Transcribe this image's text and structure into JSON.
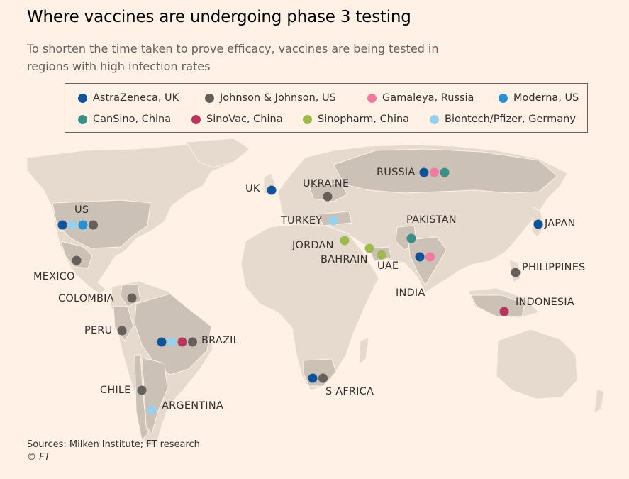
{
  "title": "Where vaccines are undergoing phase 3 testing",
  "subtitle": "To shorten the time taken to prove efficacy, vaccines are being tested in regions with high infection rates",
  "legend": [
    {
      "id": "astrazeneca",
      "label": "AstraZeneca, UK",
      "color": "#0f5499"
    },
    {
      "id": "jj",
      "label": "Johnson & Johnson, US",
      "color": "#66605c"
    },
    {
      "id": "gamaleya",
      "label": "Gamaleya, Russia",
      "color": "#f2799f"
    },
    {
      "id": "moderna",
      "label": "Moderna, US",
      "color": "#2a8fd1"
    },
    {
      "id": "cansino",
      "label": "CanSino, China",
      "color": "#3a9089"
    },
    {
      "id": "sinovac",
      "label": "SinoVac, China",
      "color": "#b8365c"
    },
    {
      "id": "sinopharm",
      "label": "Sinopharm, China",
      "color": "#9dbb4d"
    },
    {
      "id": "biontech",
      "label": "Biontech/Pfizer, Germany",
      "color": "#96d0ec"
    }
  ],
  "countries": [
    {
      "name": "US",
      "vaccines": [
        "astrazeneca",
        "biontech",
        "moderna",
        "jj"
      ]
    },
    {
      "name": "MEXICO",
      "vaccines": [
        "jj"
      ]
    },
    {
      "name": "COLOMBIA",
      "vaccines": [
        "jj"
      ]
    },
    {
      "name": "PERU",
      "vaccines": [
        "jj"
      ]
    },
    {
      "name": "BRAZIL",
      "vaccines": [
        "astrazeneca",
        "biontech",
        "sinovac",
        "jj"
      ]
    },
    {
      "name": "CHILE",
      "vaccines": [
        "jj"
      ]
    },
    {
      "name": "ARGENTINA",
      "vaccines": [
        "biontech"
      ]
    },
    {
      "name": "UK",
      "vaccines": [
        "astrazeneca"
      ]
    },
    {
      "name": "UKRAINE",
      "vaccines": [
        "jj"
      ]
    },
    {
      "name": "TURKEY",
      "vaccines": [
        "biontech"
      ]
    },
    {
      "name": "JORDAN",
      "vaccines": [
        "sinopharm"
      ]
    },
    {
      "name": "BAHRAIN",
      "vaccines": [
        "sinopharm"
      ]
    },
    {
      "name": "UAE",
      "vaccines": [
        "sinopharm"
      ]
    },
    {
      "name": "RUSSIA",
      "vaccines": [
        "astrazeneca",
        "gamaleya",
        "cansino"
      ]
    },
    {
      "name": "PAKISTAN",
      "vaccines": [
        "cansino"
      ]
    },
    {
      "name": "INDIA",
      "vaccines": [
        "astrazeneca",
        "gamaleya"
      ]
    },
    {
      "name": "JAPAN",
      "vaccines": [
        "astrazeneca"
      ]
    },
    {
      "name": "PHILIPPINES",
      "vaccines": [
        "jj"
      ]
    },
    {
      "name": "INDONESIA",
      "vaccines": [
        "sinovac"
      ]
    },
    {
      "name": "S AFRICA",
      "vaccines": [
        "astrazeneca",
        "jj"
      ]
    }
  ],
  "colors": {
    "land": "#e6d9ce",
    "land_highlight": "#ccc1b7",
    "background": "#fff1e5"
  },
  "footer": {
    "sources": "Sources: Milken Institute; FT research",
    "copyright": "© FT"
  }
}
